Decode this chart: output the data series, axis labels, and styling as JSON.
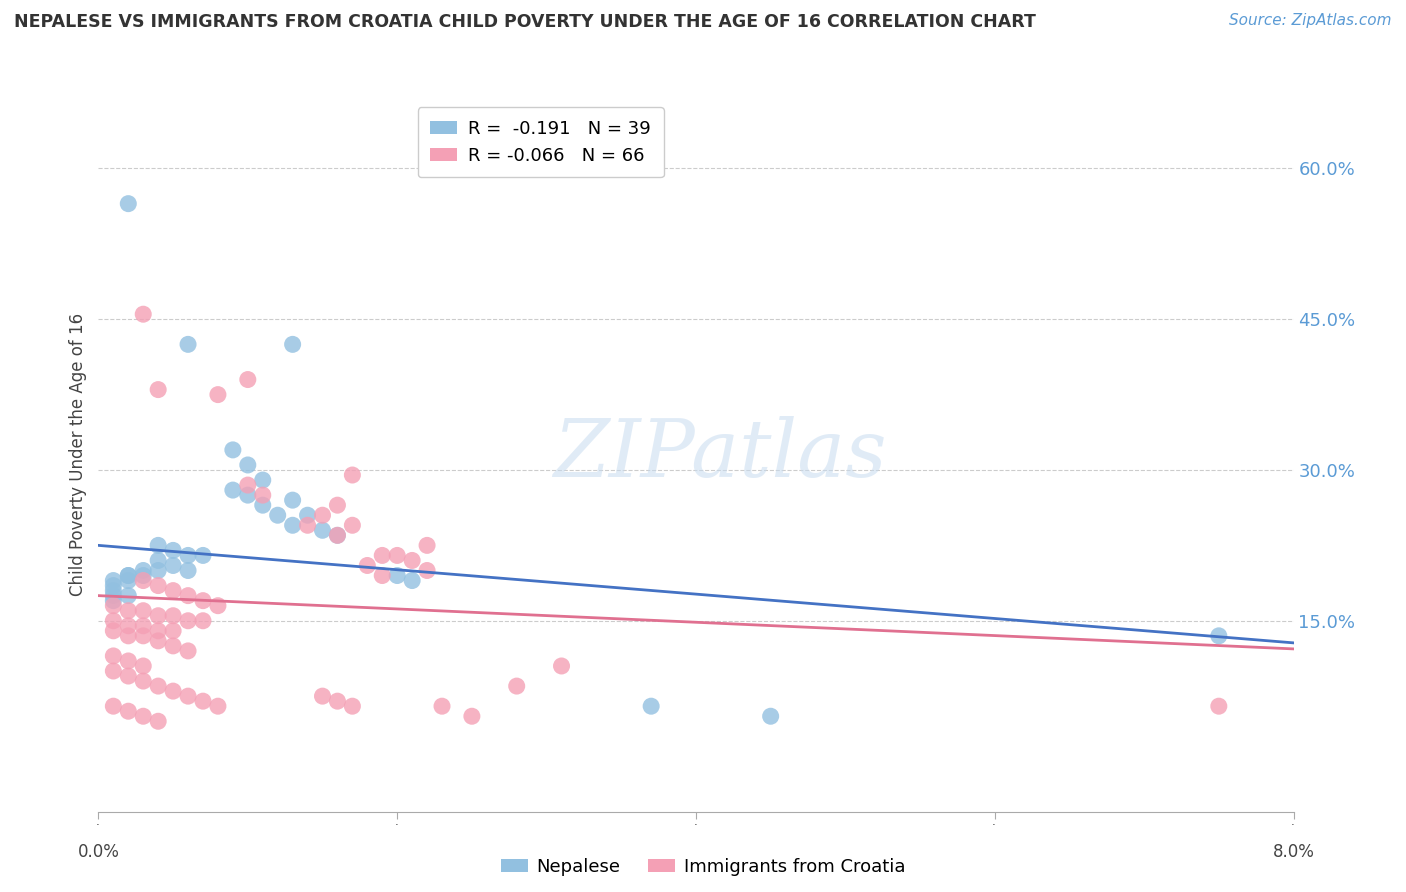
{
  "title": "NEPALESE VS IMMIGRANTS FROM CROATIA CHILD POVERTY UNDER THE AGE OF 16 CORRELATION CHART",
  "source": "Source: ZipAtlas.com",
  "ylabel": "Child Poverty Under the Age of 16",
  "ytick_values": [
    0.0,
    0.15,
    0.3,
    0.45,
    0.6
  ],
  "ytick_labels": [
    "",
    "15.0%",
    "30.0%",
    "45.0%",
    "60.0%"
  ],
  "xmin": 0.0,
  "xmax": 0.08,
  "ymin": -0.04,
  "ymax": 0.67,
  "legend_nepalese": "R =  -0.191   N = 39",
  "legend_croatia": "R = -0.066   N = 66",
  "nepalese_color": "#92C0E0",
  "croatia_color": "#F4A0B5",
  "trendline_nepalese_color": "#4472C4",
  "trendline_croatia_color": "#E07090",
  "trendline_nep_y0": 0.225,
  "trendline_nep_y1": 0.128,
  "trendline_cro_y0": 0.175,
  "trendline_cro_y1": 0.122,
  "watermark": "ZIPatlas",
  "nepalese_points": [
    [
      0.002,
      0.565
    ],
    [
      0.006,
      0.425
    ],
    [
      0.013,
      0.425
    ],
    [
      0.009,
      0.32
    ],
    [
      0.01,
      0.305
    ],
    [
      0.011,
      0.29
    ],
    [
      0.009,
      0.28
    ],
    [
      0.01,
      0.275
    ],
    [
      0.011,
      0.265
    ],
    [
      0.012,
      0.255
    ],
    [
      0.013,
      0.27
    ],
    [
      0.014,
      0.255
    ],
    [
      0.013,
      0.245
    ],
    [
      0.015,
      0.24
    ],
    [
      0.016,
      0.235
    ],
    [
      0.004,
      0.225
    ],
    [
      0.005,
      0.22
    ],
    [
      0.006,
      0.215
    ],
    [
      0.007,
      0.215
    ],
    [
      0.004,
      0.21
    ],
    [
      0.005,
      0.205
    ],
    [
      0.006,
      0.2
    ],
    [
      0.003,
      0.2
    ],
    [
      0.004,
      0.2
    ],
    [
      0.002,
      0.195
    ],
    [
      0.003,
      0.195
    ],
    [
      0.002,
      0.195
    ],
    [
      0.001,
      0.19
    ],
    [
      0.002,
      0.19
    ],
    [
      0.02,
      0.195
    ],
    [
      0.021,
      0.19
    ],
    [
      0.001,
      0.185
    ],
    [
      0.001,
      0.18
    ],
    [
      0.001,
      0.175
    ],
    [
      0.002,
      0.175
    ],
    [
      0.001,
      0.17
    ],
    [
      0.075,
      0.135
    ],
    [
      0.037,
      0.065
    ],
    [
      0.045,
      0.055
    ]
  ],
  "croatia_points": [
    [
      0.003,
      0.455
    ],
    [
      0.004,
      0.38
    ],
    [
      0.01,
      0.39
    ],
    [
      0.008,
      0.375
    ],
    [
      0.017,
      0.295
    ],
    [
      0.01,
      0.285
    ],
    [
      0.011,
      0.275
    ],
    [
      0.016,
      0.265
    ],
    [
      0.015,
      0.255
    ],
    [
      0.014,
      0.245
    ],
    [
      0.017,
      0.245
    ],
    [
      0.016,
      0.235
    ],
    [
      0.022,
      0.225
    ],
    [
      0.019,
      0.215
    ],
    [
      0.02,
      0.215
    ],
    [
      0.021,
      0.21
    ],
    [
      0.018,
      0.205
    ],
    [
      0.022,
      0.2
    ],
    [
      0.019,
      0.195
    ],
    [
      0.003,
      0.19
    ],
    [
      0.004,
      0.185
    ],
    [
      0.005,
      0.18
    ],
    [
      0.006,
      0.175
    ],
    [
      0.007,
      0.17
    ],
    [
      0.008,
      0.165
    ],
    [
      0.001,
      0.165
    ],
    [
      0.002,
      0.16
    ],
    [
      0.003,
      0.16
    ],
    [
      0.004,
      0.155
    ],
    [
      0.005,
      0.155
    ],
    [
      0.006,
      0.15
    ],
    [
      0.007,
      0.15
    ],
    [
      0.001,
      0.15
    ],
    [
      0.002,
      0.145
    ],
    [
      0.003,
      0.145
    ],
    [
      0.004,
      0.14
    ],
    [
      0.005,
      0.14
    ],
    [
      0.001,
      0.14
    ],
    [
      0.002,
      0.135
    ],
    [
      0.003,
      0.135
    ],
    [
      0.004,
      0.13
    ],
    [
      0.005,
      0.125
    ],
    [
      0.006,
      0.12
    ],
    [
      0.001,
      0.115
    ],
    [
      0.002,
      0.11
    ],
    [
      0.003,
      0.105
    ],
    [
      0.001,
      0.1
    ],
    [
      0.002,
      0.095
    ],
    [
      0.003,
      0.09
    ],
    [
      0.004,
      0.085
    ],
    [
      0.005,
      0.08
    ],
    [
      0.006,
      0.075
    ],
    [
      0.007,
      0.07
    ],
    [
      0.008,
      0.065
    ],
    [
      0.001,
      0.065
    ],
    [
      0.002,
      0.06
    ],
    [
      0.003,
      0.055
    ],
    [
      0.004,
      0.05
    ],
    [
      0.015,
      0.075
    ],
    [
      0.016,
      0.07
    ],
    [
      0.017,
      0.065
    ],
    [
      0.023,
      0.065
    ],
    [
      0.025,
      0.055
    ],
    [
      0.028,
      0.085
    ],
    [
      0.075,
      0.065
    ],
    [
      0.031,
      0.105
    ]
  ]
}
